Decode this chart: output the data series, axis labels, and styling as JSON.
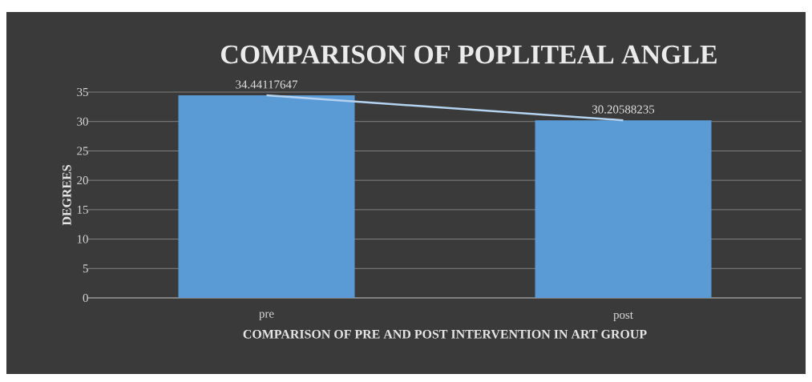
{
  "chart_data": {
    "type": "bar",
    "title": "COMPARISON OF POPLITEAL ANGLE",
    "xlabel": "COMPARISON OF PRE AND POST INTERVENTION IN ART GROUP",
    "ylabel": "DEGREES",
    "categories": [
      "pre",
      "post"
    ],
    "series": [
      {
        "color": "#5b9bd5",
        "values": [
          34.44117647,
          30.20588235
        ],
        "value_labels": [
          "34.44117647",
          "30.20588235"
        ]
      },
      {
        "type": "line",
        "color": "#b4d3f0",
        "values": [
          34.44,
          30.21
        ]
      }
    ],
    "ylim": [
      0,
      35
    ],
    "yticks": [
      0,
      5,
      10,
      15,
      20,
      25,
      30,
      35
    ],
    "grid": "y"
  }
}
